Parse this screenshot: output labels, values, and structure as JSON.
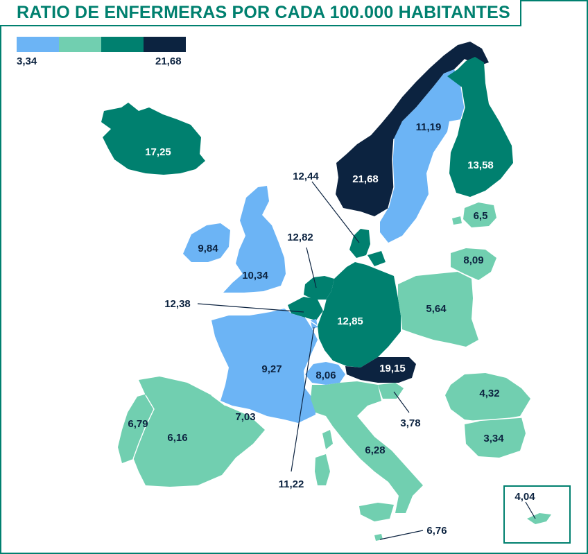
{
  "title": "RATIO DE ENFERMERAS POR CADA 100.000 HABITANTES",
  "legend": {
    "min": "3,34",
    "max": "21,68",
    "colors": [
      "#6cb4f5",
      "#71cfb0",
      "#00806f",
      "#0c2340"
    ]
  },
  "values": {
    "iceland": "17,25",
    "norway": "21,68",
    "sweden": "11,19",
    "finland": "13,58",
    "estonia": "6,5",
    "latvia": "8,09",
    "ireland": "9,84",
    "uk": "10,34",
    "denmark": "12,44",
    "netherlands": "12,82",
    "belgium": "12,38",
    "germany": "12,85",
    "poland": "5,64",
    "france": "9,27",
    "switzerland": "8,06",
    "luxembourg": "11,22",
    "austria": "19,15",
    "slovenia": "3,78",
    "romania": "4,32",
    "bulgaria": "3,34",
    "spain": "6,16",
    "portugal": "6,79",
    "andorra": "7,03",
    "italy": "6,28",
    "malta": "6,76",
    "cyprus": "4,04"
  }
}
